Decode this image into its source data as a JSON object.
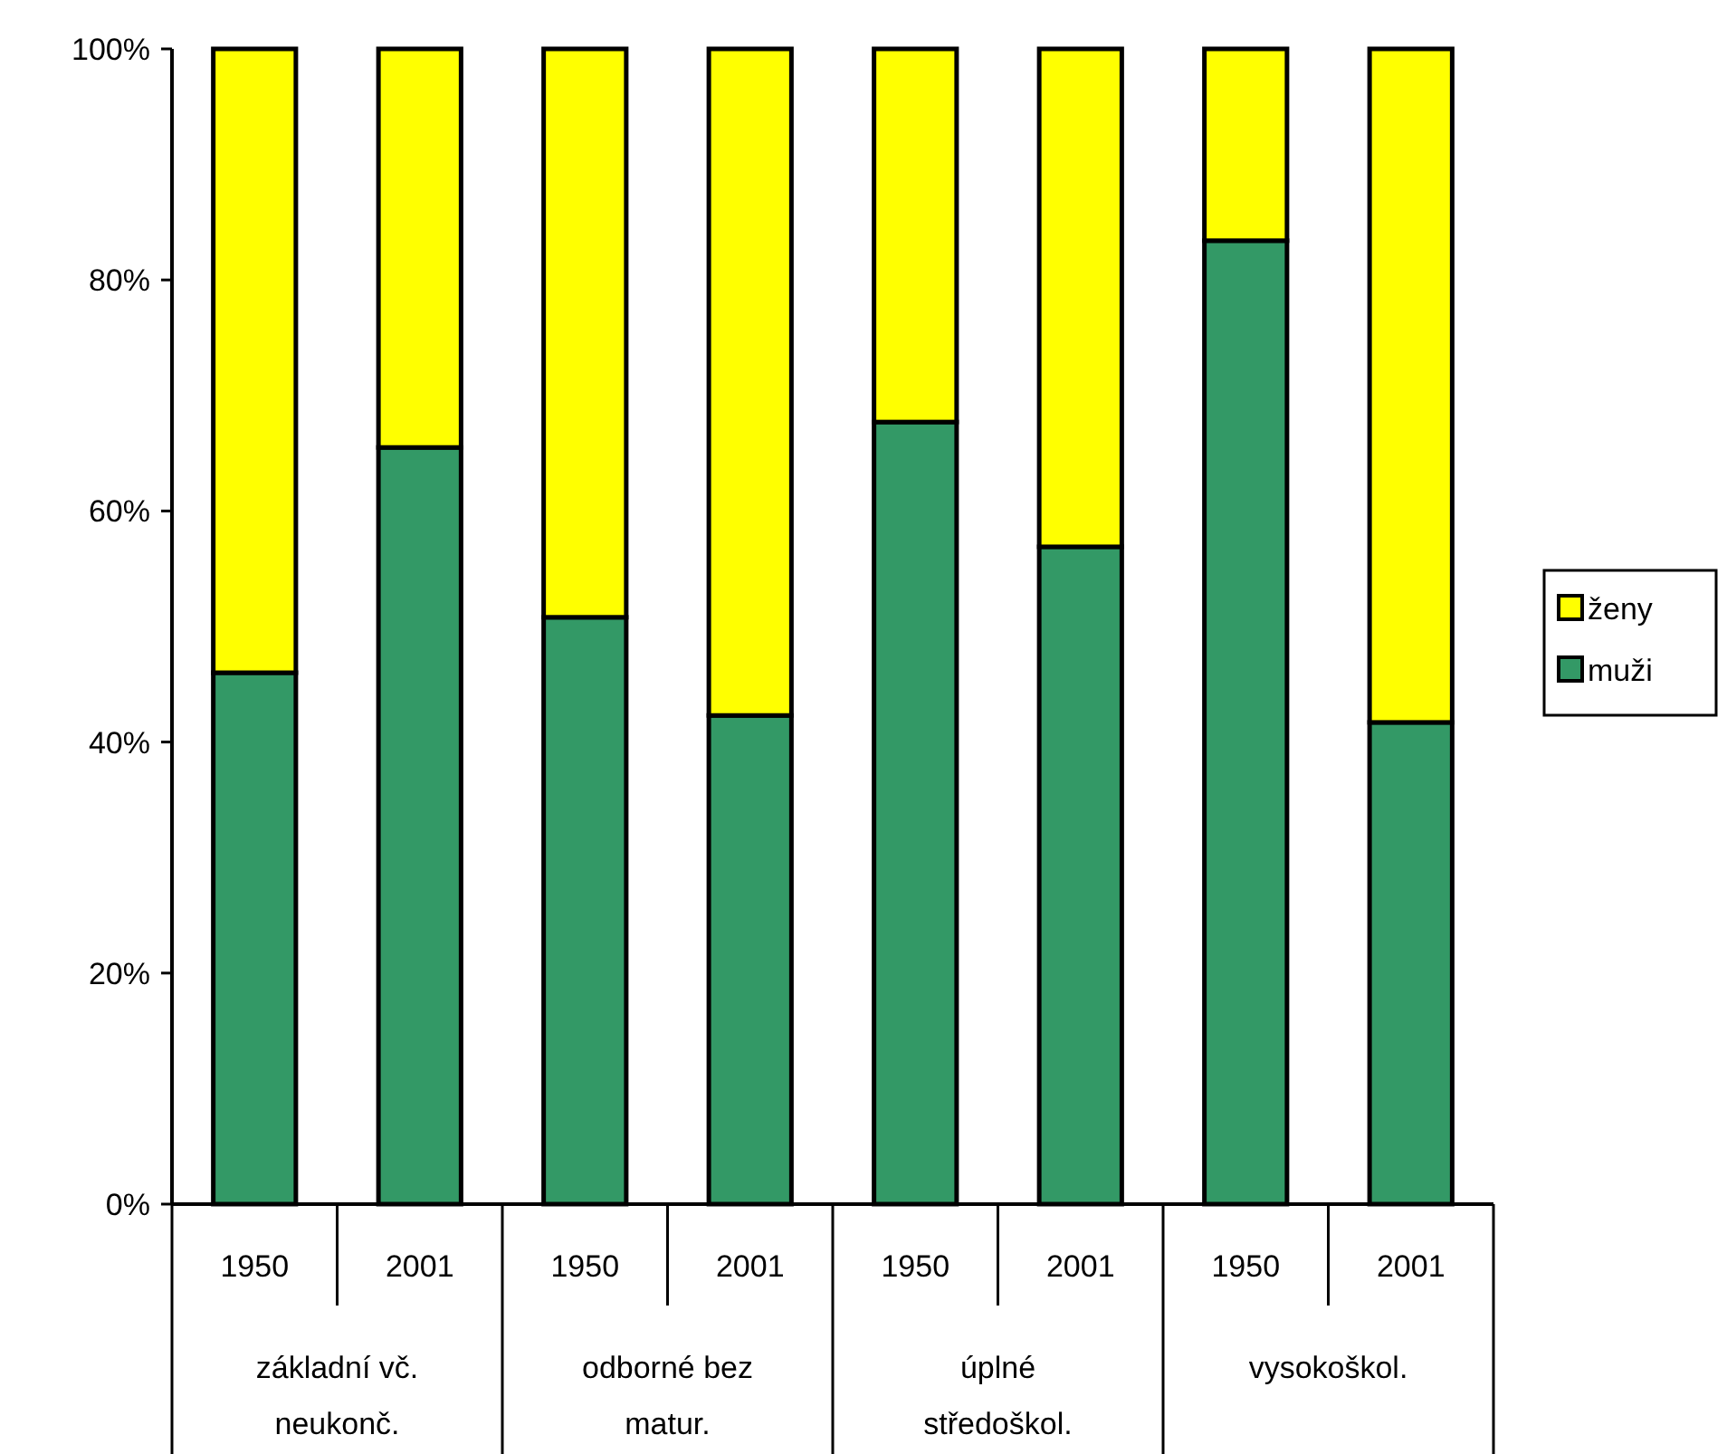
{
  "chart_data": {
    "type": "bar",
    "stacked": true,
    "categories": [
      "1950",
      "2001",
      "1950",
      "2001",
      "1950",
      "2001",
      "1950",
      "2001"
    ],
    "series": [
      {
        "name": "muži",
        "color": "#339966",
        "values": [
          46,
          65.5,
          50.8,
          42.3,
          67.7,
          56.9,
          83.4,
          41.7
        ]
      },
      {
        "name": "ženy",
        "color": "#ffff00",
        "values": [
          54,
          34.5,
          49.2,
          57.7,
          32.3,
          43.1,
          16.6,
          58.3
        ]
      }
    ],
    "ylim": [
      0,
      100
    ],
    "yticks": [
      {
        "value": 0,
        "label": "0%"
      },
      {
        "value": 20,
        "label": "20%"
      },
      {
        "value": 40,
        "label": "40%"
      },
      {
        "value": 60,
        "label": "60%"
      },
      {
        "value": 80,
        "label": "80%"
      },
      {
        "value": 100,
        "label": "100%"
      }
    ],
    "annotations": [
      "základní vč. neukonč.",
      "odborné bez matur.",
      "úplné středoškol.",
      "vysokoškol."
    ],
    "legend": "right",
    "grid": false
  }
}
